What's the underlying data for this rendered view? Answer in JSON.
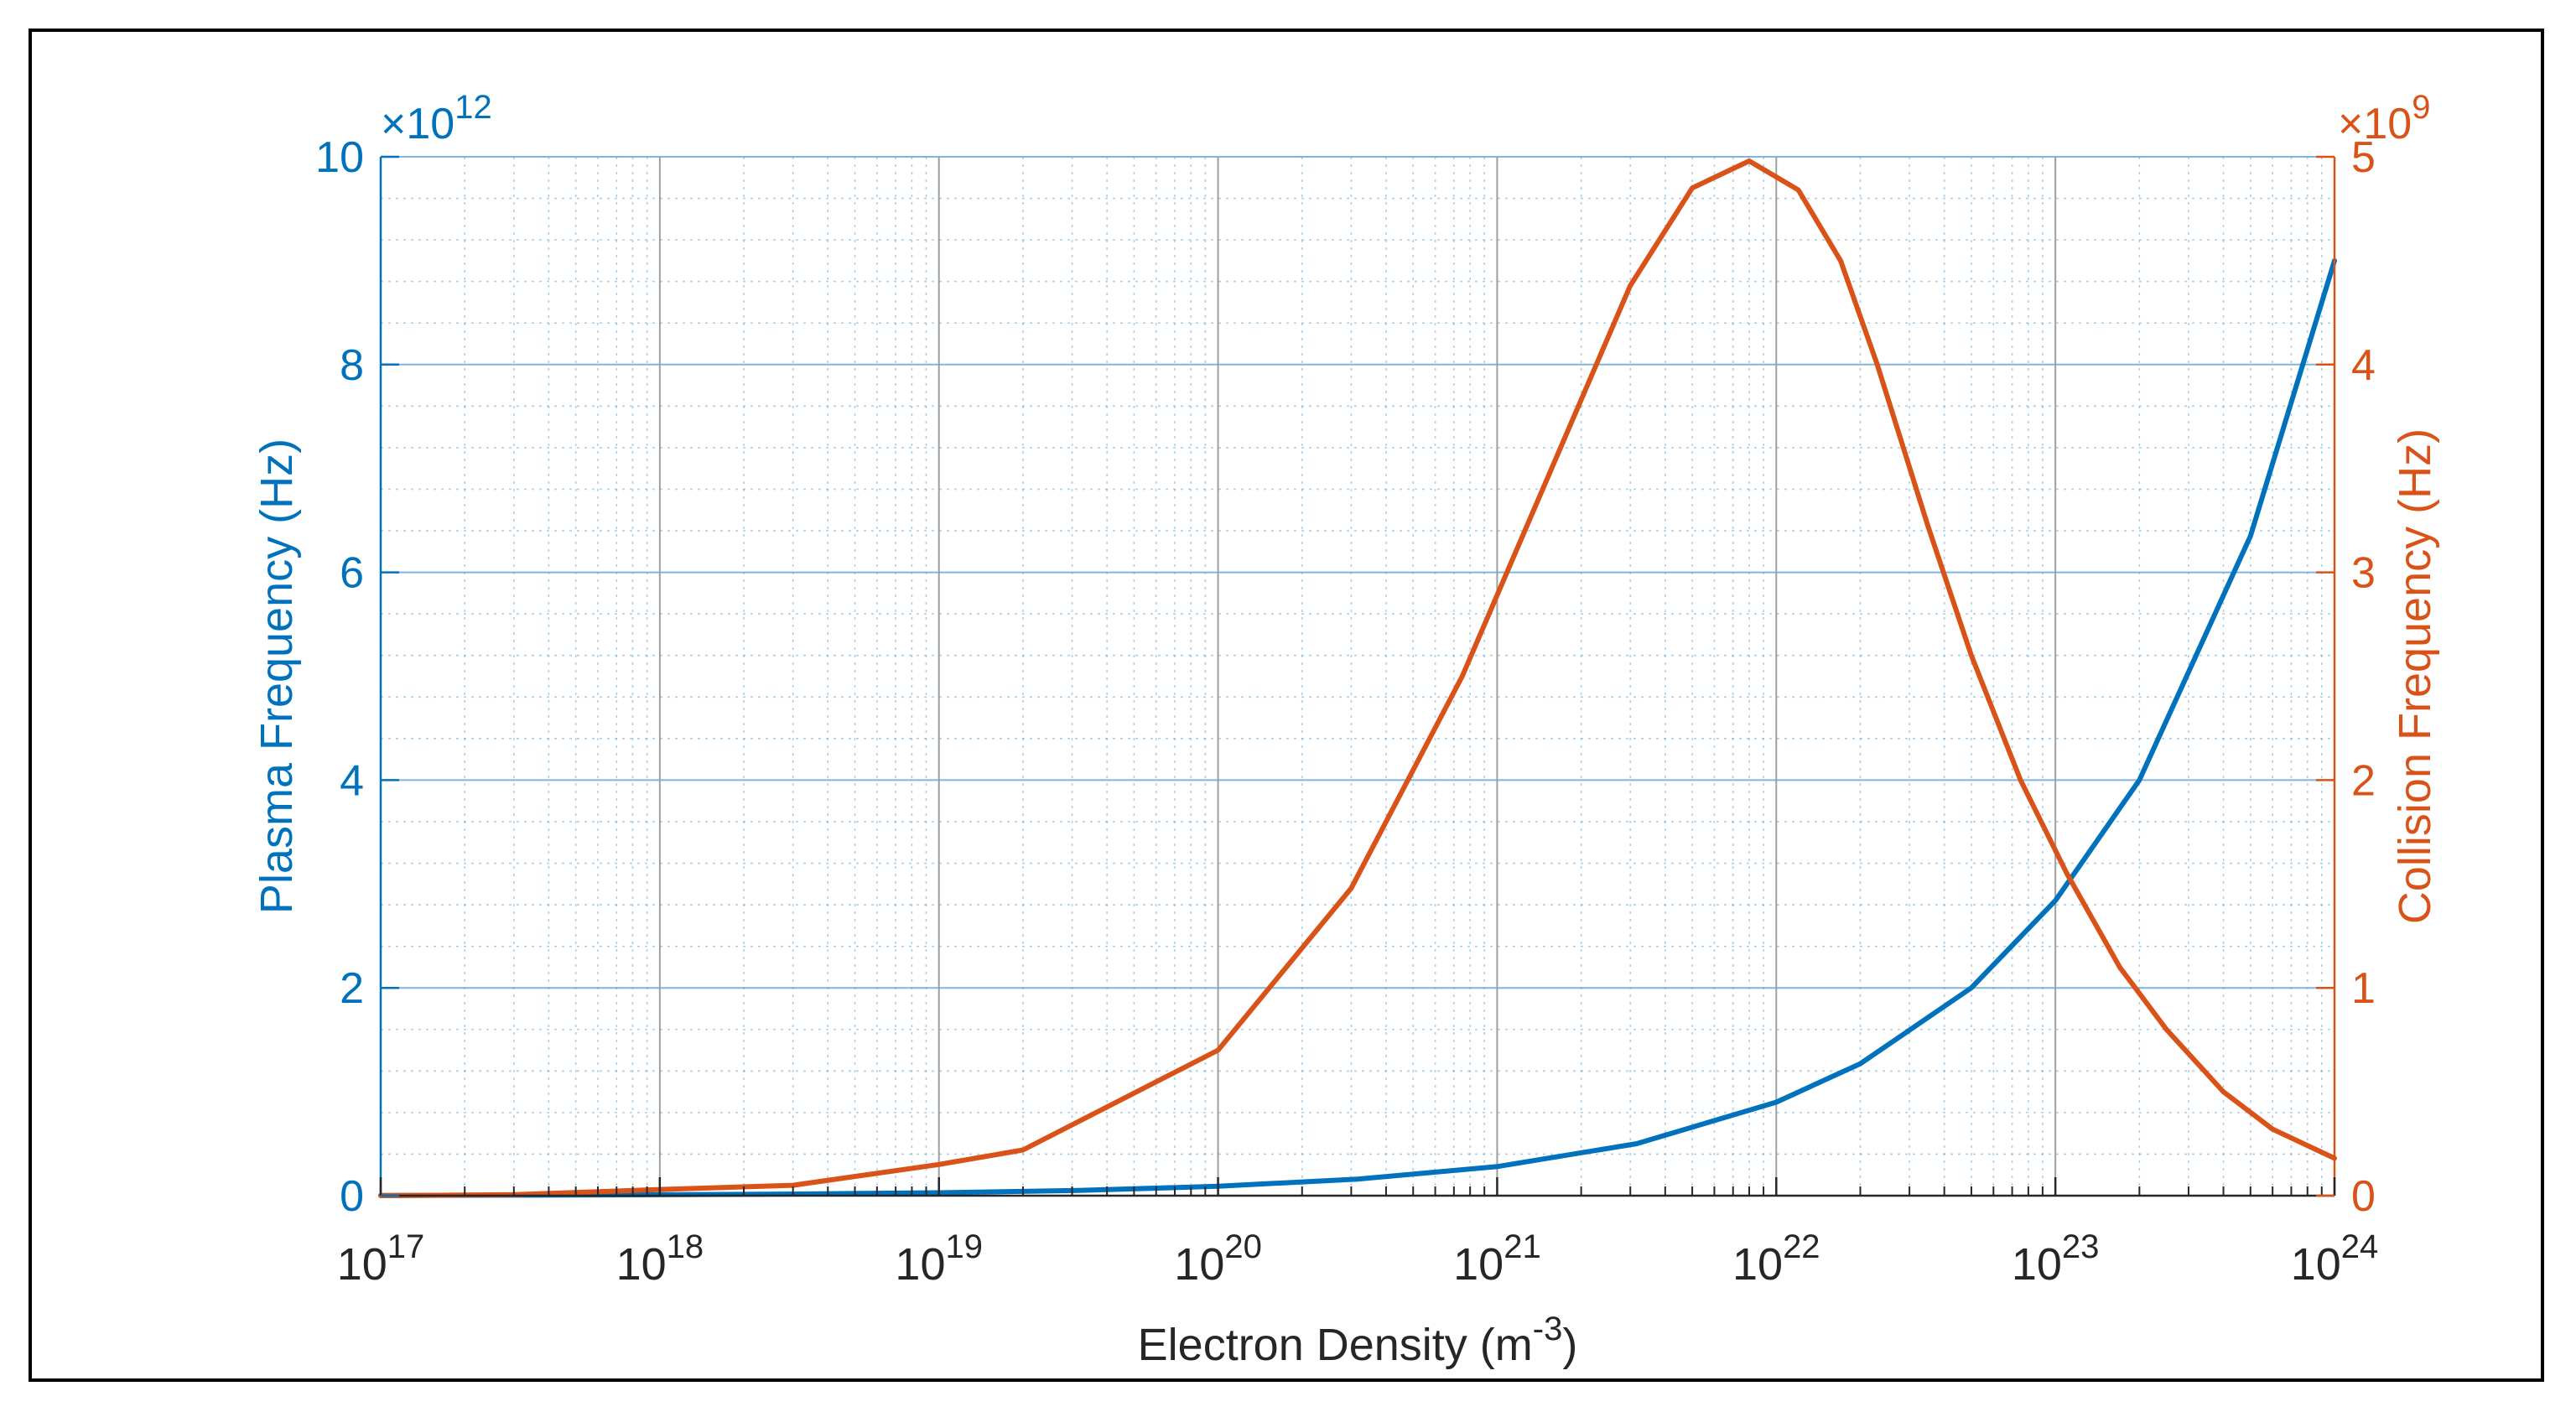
{
  "colors": {
    "left": "#0072BD",
    "right": "#D95319",
    "grid_major": "#7f7f7f",
    "grid_minor": "#6aa9d6",
    "axis": "#262626"
  },
  "chart_data": {
    "type": "line",
    "xscale": "log",
    "xlim": [
      1e+17,
      1e+24
    ],
    "xlabel": {
      "base": "Electron Density (m",
      "sup": "-3",
      "tail": ")"
    },
    "xticks": [
      {
        "value": 1e+17,
        "base": "10",
        "exp": "17"
      },
      {
        "value": 1e+18,
        "base": "10",
        "exp": "18"
      },
      {
        "value": 1e+19,
        "base": "10",
        "exp": "19"
      },
      {
        "value": 1e+20,
        "base": "10",
        "exp": "20"
      },
      {
        "value": 1e+21,
        "base": "10",
        "exp": "21"
      },
      {
        "value": 1e+22,
        "base": "10",
        "exp": "22"
      },
      {
        "value": 1e+23,
        "base": "10",
        "exp": "23"
      },
      {
        "value": 1e+24,
        "base": "10",
        "exp": "24"
      }
    ],
    "grid": true,
    "left_axis": {
      "ylabel": "Plasma Frequency (Hz)",
      "ylim": [
        0,
        10
      ],
      "ticks": [
        0,
        2,
        4,
        6,
        8,
        10
      ],
      "tick_labels": [
        "0",
        "2",
        "4",
        "6",
        "8",
        "10"
      ],
      "multiplier": {
        "sym": "×10",
        "exp": "12"
      }
    },
    "right_axis": {
      "ylabel": "Collision Frequency (Hz)",
      "ylim": [
        0,
        5
      ],
      "ticks": [
        0,
        1,
        2,
        3,
        4,
        5
      ],
      "tick_labels": [
        "0",
        "1",
        "2",
        "3",
        "4",
        "5"
      ],
      "multiplier": {
        "sym": "×10",
        "exp": "9"
      }
    },
    "series": [
      {
        "axis": "left",
        "x": [
          1e+17,
          3.16e+17,
          1e+18,
          3.16e+18,
          1e+19,
          3.16e+19,
          1e+20,
          3.16e+20,
          1e+21,
          3.16e+21,
          1e+22,
          2e+22,
          5e+22,
          1e+23,
          2e+23,
          5e+23,
          1e+24
        ],
        "y": [
          0.0028,
          0.005,
          0.009,
          0.016,
          0.028,
          0.05,
          0.09,
          0.16,
          0.28,
          0.5,
          0.9,
          1.27,
          2.0,
          2.84,
          4.0,
          6.35,
          9.0
        ]
      },
      {
        "axis": "right",
        "x": [
          1e+17,
          3e+17,
          1e+18,
          3e+18,
          1e+19,
          2e+19,
          1e+20,
          3e+20,
          7.5e+20,
          3e+21,
          5e+21,
          8e+21,
          1.2e+22,
          1.7e+22,
          2.3e+22,
          3.5e+22,
          5e+22,
          7.5e+22,
          1.1e+23,
          1.7e+23,
          2.5e+23,
          4e+23,
          6e+23,
          1e+24
        ],
        "y": [
          0.0,
          0.005,
          0.03,
          0.05,
          0.15,
          0.22,
          0.7,
          1.48,
          2.5,
          4.38,
          4.85,
          4.98,
          4.84,
          4.5,
          4.0,
          3.22,
          2.6,
          2.0,
          1.55,
          1.1,
          0.8,
          0.5,
          0.32,
          0.18
        ]
      }
    ]
  }
}
